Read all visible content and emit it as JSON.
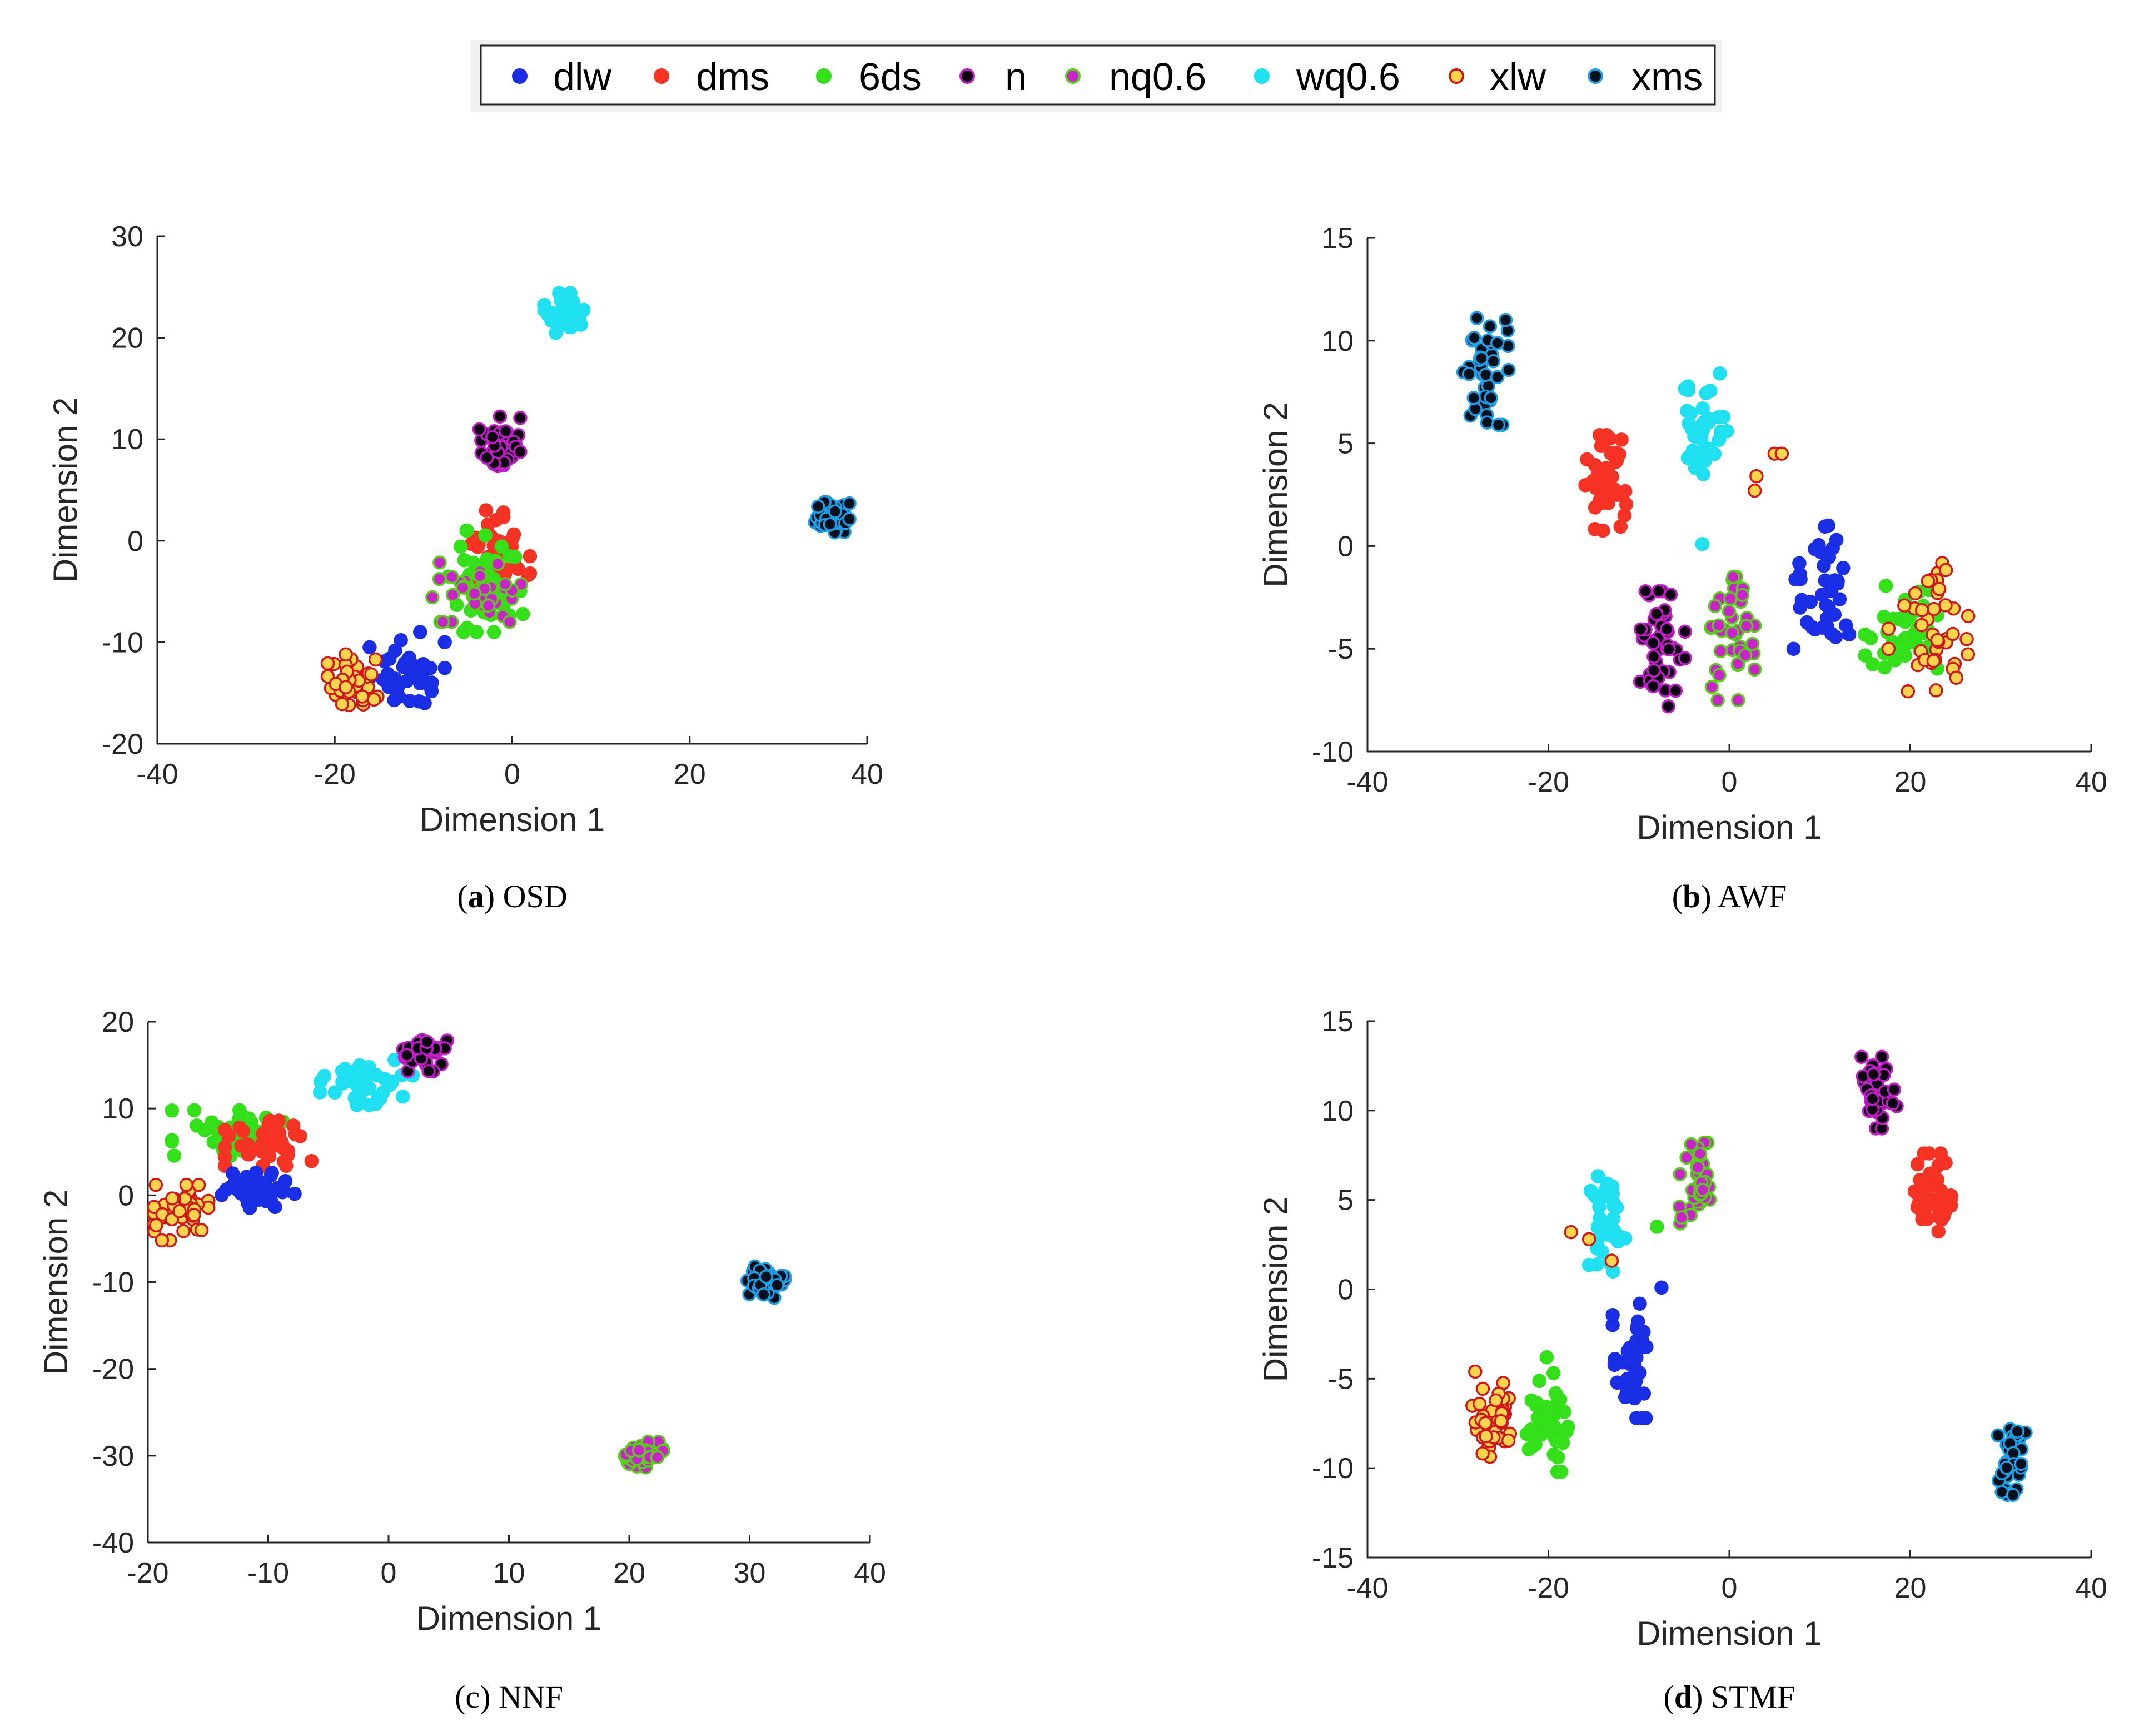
{
  "legend": {
    "entries": [
      {
        "key": "dlw",
        "label": "dlw"
      },
      {
        "key": "dms",
        "label": "dms"
      },
      {
        "key": "6ds",
        "label": "6ds"
      },
      {
        "key": "n",
        "label": "n"
      },
      {
        "key": "nq06",
        "label": "nq0.6"
      },
      {
        "key": "wq06",
        "label": "wq0.6"
      },
      {
        "key": "xlw",
        "label": "xlw"
      },
      {
        "key": "xms",
        "label": "xms"
      }
    ]
  },
  "styles": {
    "dlw": {
      "fill": "#1a2ee6",
      "edge": "#1a2ee6"
    },
    "dms": {
      "fill": "#f53325",
      "edge": "#f53325"
    },
    "6ds": {
      "fill": "#33e01a",
      "edge": "#33e01a"
    },
    "n": {
      "fill": "#0d0010",
      "edge": "#c21ec8"
    },
    "nq06": {
      "fill": "#cc22cc",
      "edge": "#55d018"
    },
    "wq06": {
      "fill": "#1ee0f0",
      "edge": "#1ee0f0"
    },
    "xlw": {
      "fill": "#ffd44d",
      "edge": "#d0171b"
    },
    "xms": {
      "fill": "#06101c",
      "edge": "#1e9ee6"
    }
  },
  "chart_data": [
    {
      "type": "scatter",
      "id": "a",
      "caption_letter": "a",
      "caption_name": "OSD",
      "xlabel": "Dimension 1",
      "ylabel": "Dimension 2",
      "xlim": [
        -40,
        40
      ],
      "ylim": [
        -20,
        30
      ],
      "xticks": [
        -40,
        -20,
        0,
        20,
        40
      ],
      "yticks": [
        -20,
        -10,
        0,
        10,
        20,
        30
      ],
      "xtick_labels": [
        "-40",
        "-20",
        "0",
        "20",
        "40"
      ],
      "ytick_labels": [
        "-20",
        "-10",
        "0",
        "10",
        "20",
        "30"
      ],
      "grid": false,
      "clusters": [
        {
          "series": "dlw",
          "cx": -12,
          "cy": -13,
          "sx": 2.2,
          "sy": 2.0,
          "n": 40,
          "seed": 11
        },
        {
          "series": "dms",
          "cx": -2,
          "cy": -2,
          "sx": 2.0,
          "sy": 2.5,
          "n": 45,
          "seed": 12
        },
        {
          "series": "6ds",
          "cx": -4,
          "cy": -4,
          "sx": 2.6,
          "sy": 2.5,
          "n": 40,
          "seed": 13
        },
        {
          "series": "nq06",
          "cx": -4,
          "cy": -5,
          "sx": 2.5,
          "sy": 1.5,
          "n": 40,
          "seed": 14
        },
        {
          "series": "n",
          "cx": -1.5,
          "cy": 9.5,
          "sx": 1.2,
          "sy": 1.4,
          "n": 40,
          "seed": 15
        },
        {
          "series": "wq06",
          "cx": 6,
          "cy": 22,
          "sx": 1.2,
          "sy": 1.2,
          "n": 40,
          "seed": 16
        },
        {
          "series": "xlw",
          "cx": -18,
          "cy": -14,
          "sx": 1.4,
          "sy": 1.4,
          "n": 40,
          "seed": 17
        },
        {
          "series": "xms",
          "cx": 36,
          "cy": 2,
          "sx": 1.0,
          "sy": 0.9,
          "n": 40,
          "seed": 18
        }
      ]
    },
    {
      "type": "scatter",
      "id": "b",
      "caption_letter": "b",
      "caption_name": "AWF",
      "xlabel": "Dimension 1",
      "ylabel": "Dimension 2",
      "xlim": [
        -40,
        40
      ],
      "ylim": [
        -10,
        15
      ],
      "xticks": [
        -40,
        -20,
        0,
        20,
        40
      ],
      "yticks": [
        -10,
        -5,
        0,
        5,
        10,
        15
      ],
      "xtick_labels": [
        "-40",
        "-20",
        "0",
        "20",
        "40"
      ],
      "ytick_labels": [
        "-10",
        "-5",
        "0",
        "5",
        "10",
        "15"
      ],
      "grid": false,
      "clusters": [
        {
          "series": "xms",
          "cx": -27,
          "cy": 8.5,
          "sx": 1.3,
          "sy": 1.3,
          "n": 40,
          "seed": 21
        },
        {
          "series": "dms",
          "cx": -14,
          "cy": 3,
          "sx": 1.3,
          "sy": 1.2,
          "n": 40,
          "seed": 22
        },
        {
          "series": "wq06",
          "cx": -2.5,
          "cy": 5.8,
          "sx": 1.4,
          "sy": 1.4,
          "n": 35,
          "seed": 23
        },
        {
          "series": "n",
          "cx": -7.5,
          "cy": -5,
          "sx": 1.3,
          "sy": 1.4,
          "n": 45,
          "seed": 24
        },
        {
          "series": "nq06",
          "cx": 0,
          "cy": -4.5,
          "sx": 1.4,
          "sy": 1.5,
          "n": 40,
          "seed": 25
        },
        {
          "series": "dlw",
          "cx": 10,
          "cy": -2,
          "sx": 1.8,
          "sy": 1.5,
          "n": 40,
          "seed": 26
        },
        {
          "series": "6ds",
          "cx": 19,
          "cy": -4,
          "sx": 2.0,
          "sy": 1.2,
          "n": 45,
          "seed": 27
        },
        {
          "series": "xlw",
          "cx": 22,
          "cy": -4,
          "sx": 2.2,
          "sy": 1.8,
          "n": 40,
          "seed": 28
        }
      ],
      "extra_points": [
        {
          "series": "xlw",
          "x": 5,
          "y": 4.5
        },
        {
          "series": "xlw",
          "x": 5.8,
          "y": 4.5
        },
        {
          "series": "xlw",
          "x": 3,
          "y": 3.4
        },
        {
          "series": "xlw",
          "x": 2.8,
          "y": 2.7
        },
        {
          "series": "wq06",
          "x": -3,
          "y": 0.1
        }
      ]
    },
    {
      "type": "scatter",
      "id": "c",
      "caption_letter": "c",
      "caption_name": "NNF",
      "xlabel": "Dimension 1",
      "ylabel": "Dimension 2",
      "xlim": [
        -20,
        40
      ],
      "ylim": [
        -40,
        20
      ],
      "xticks": [
        -20,
        -10,
        0,
        10,
        20,
        30,
        40
      ],
      "yticks": [
        -40,
        -30,
        -20,
        -10,
        0,
        10,
        20
      ],
      "xtick_labels": [
        "-20",
        "-10",
        "0",
        "10",
        "20",
        "30",
        "40"
      ],
      "ytick_labels": [
        "-40",
        "-30",
        "-20",
        "-10",
        "0",
        "10",
        "20"
      ],
      "grid": false,
      "clusters": [
        {
          "series": "6ds",
          "cx": -13,
          "cy": 7,
          "sx": 2.5,
          "sy": 1.4,
          "n": 45,
          "seed": 31
        },
        {
          "series": "dms",
          "cx": -10,
          "cy": 6,
          "sx": 1.8,
          "sy": 1.3,
          "n": 40,
          "seed": 32
        },
        {
          "series": "dlw",
          "cx": -11,
          "cy": 0.5,
          "sx": 1.6,
          "sy": 1.2,
          "n": 40,
          "seed": 33
        },
        {
          "series": "xlw",
          "cx": -17,
          "cy": -2,
          "sx": 1.4,
          "sy": 1.6,
          "n": 40,
          "seed": 34
        },
        {
          "series": "wq06",
          "cx": -2,
          "cy": 13,
          "sx": 2.0,
          "sy": 1.3,
          "n": 40,
          "seed": 35
        },
        {
          "series": "n",
          "cx": 3,
          "cy": 16.5,
          "sx": 1.2,
          "sy": 1.1,
          "n": 40,
          "seed": 36
        },
        {
          "series": "xms",
          "cx": 31.5,
          "cy": -10,
          "sx": 0.9,
          "sy": 0.9,
          "n": 40,
          "seed": 37
        },
        {
          "series": "nq06",
          "cx": 21,
          "cy": -30,
          "sx": 0.9,
          "sy": 0.8,
          "n": 40,
          "seed": 38
        }
      ]
    },
    {
      "type": "scatter",
      "id": "d",
      "caption_letter": "d",
      "caption_name": "STMF",
      "xlabel": "Dimension 1",
      "ylabel": "Dimension 2",
      "xlim": [
        -40,
        40
      ],
      "ylim": [
        -15,
        15
      ],
      "xticks": [
        -40,
        -20,
        0,
        20,
        40
      ],
      "yticks": [
        -15,
        -10,
        -5,
        0,
        5,
        10,
        15
      ],
      "xtick_labels": [
        "-40",
        "-20",
        "0",
        "20",
        "40"
      ],
      "ytick_labels": [
        "-15",
        "-10",
        "-5",
        "0",
        "5",
        "10",
        "15"
      ],
      "grid": false,
      "clusters": [
        {
          "series": "xlw",
          "cx": -26,
          "cy": -7,
          "sx": 1.2,
          "sy": 1.2,
          "n": 40,
          "seed": 41
        },
        {
          "series": "6ds",
          "cx": -20,
          "cy": -7,
          "sx": 1.2,
          "sy": 1.6,
          "n": 40,
          "seed": 42
        },
        {
          "series": "dlw",
          "cx": -10.5,
          "cy": -4,
          "sx": 1.2,
          "sy": 1.6,
          "n": 35,
          "seed": 43
        },
        {
          "series": "wq06",
          "cx": -13.5,
          "cy": 3.8,
          "sx": 1.0,
          "sy": 1.4,
          "n": 40,
          "seed": 44
        },
        {
          "series": "nq06",
          "cx": -3.5,
          "cy": 5.8,
          "sx": 1.0,
          "sy": 1.2,
          "n": 40,
          "seed": 45
        },
        {
          "series": "n",
          "cx": 16.5,
          "cy": 11,
          "sx": 1.0,
          "sy": 1.0,
          "n": 40,
          "seed": 46
        },
        {
          "series": "dms",
          "cx": 22.5,
          "cy": 5.2,
          "sx": 1.0,
          "sy": 1.2,
          "n": 40,
          "seed": 47
        },
        {
          "series": "xms",
          "cx": 31.5,
          "cy": -9.3,
          "sx": 0.9,
          "sy": 1.1,
          "n": 40,
          "seed": 48
        }
      ],
      "extra_points": [
        {
          "series": "xlw",
          "x": -17.5,
          "y": 3.2
        },
        {
          "series": "xlw",
          "x": -15.5,
          "y": 2.8
        },
        {
          "series": "xlw",
          "x": -13,
          "y": 1.6
        },
        {
          "series": "dlw",
          "x": -7.5,
          "y": 0.1
        },
        {
          "series": "6ds",
          "x": -8,
          "y": 3.5
        }
      ]
    }
  ]
}
